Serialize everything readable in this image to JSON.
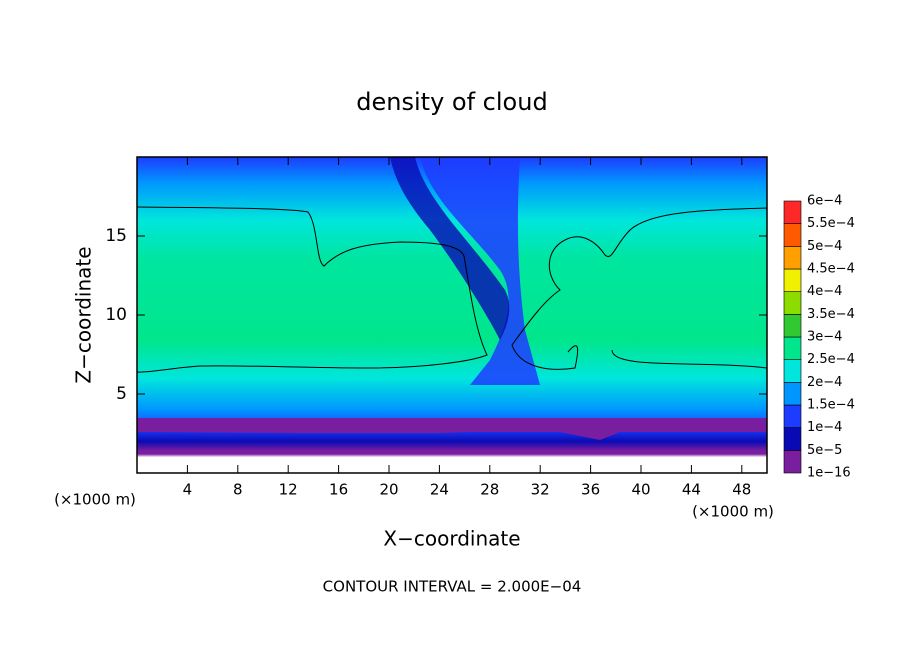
{
  "chart_data": {
    "type": "contour",
    "title": "density of cloud",
    "xlabel": "X−coordinate",
    "ylabel": "Z−coordinate",
    "z_unit": "(×1000 m)",
    "x_unit": "(×1000 m)",
    "footer": "CONTOUR INTERVAL = 2.000E−04",
    "xlim": [
      0,
      50
    ],
    "ylim": [
      0,
      20
    ],
    "xticks": [
      4,
      8,
      12,
      16,
      20,
      24,
      28,
      32,
      36,
      40,
      44,
      48
    ],
    "yticks": [
      5,
      10,
      15
    ],
    "colorbar": {
      "levels": [
        {
          "value": 1e-16,
          "label": "1e−16"
        },
        {
          "value": 5e-05,
          "label": "5e−5"
        },
        {
          "value": 0.0001,
          "label": "1e−4"
        },
        {
          "value": 0.00015,
          "label": "1.5e−4"
        },
        {
          "value": 0.0002,
          "label": "2e−4"
        },
        {
          "value": 0.00025,
          "label": "2.5e−4"
        },
        {
          "value": 0.0003,
          "label": "3e−4"
        },
        {
          "value": 0.00035,
          "label": "3.5e−4"
        },
        {
          "value": 0.0004,
          "label": "4e−4"
        },
        {
          "value": 0.00045,
          "label": "4.5e−4"
        },
        {
          "value": 0.0005,
          "label": "5e−4"
        },
        {
          "value": 0.00055,
          "label": "5.5e−4"
        },
        {
          "value": 0.0006,
          "label": "6e−4"
        }
      ],
      "colors": [
        "#7a1ea0",
        "#0a0ab4",
        "#1e3cff",
        "#0096ff",
        "#00e6dc",
        "#00e68c",
        "#32c832",
        "#8cdc00",
        "#f0f000",
        "#ffa000",
        "#ff5a00",
        "#ff2828",
        "#ff9696"
      ]
    }
  }
}
